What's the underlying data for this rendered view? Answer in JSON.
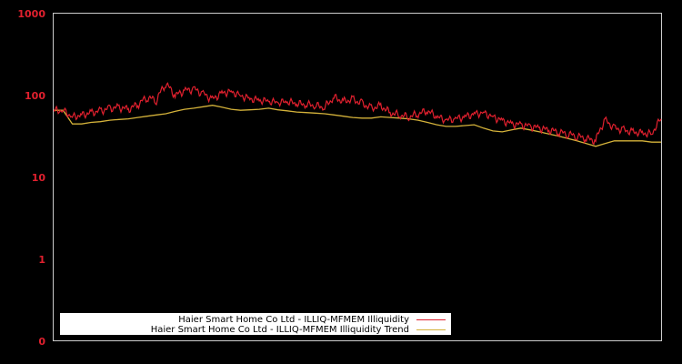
{
  "chart_data": {
    "type": "line",
    "title": "",
    "xlabel": "",
    "ylabel": "",
    "yscale": "log",
    "ylim": [
      0.1,
      1000
    ],
    "y_ticks": [
      "1000",
      "100",
      "10",
      "1",
      "0"
    ],
    "grid": false,
    "legend_position": "lower-left",
    "series": [
      {
        "name": "Haier Smart Home Co Ltd - ILLIQ-MFMEM Illiquidity",
        "color": "#e0202e",
        "values_approx": [
          66,
          66,
          55,
          58,
          62,
          65,
          70,
          72,
          68,
          78,
          95,
          88,
          140,
          100,
          115,
          120,
          105,
          90,
          108,
          112,
          100,
          92,
          88,
          85,
          82,
          84,
          80,
          78,
          76,
          72,
          95,
          85,
          90,
          80,
          70,
          75,
          62,
          58,
          55,
          60,
          65,
          55,
          50,
          52,
          55,
          60,
          62,
          55,
          50,
          45,
          44,
          42,
          40,
          38,
          36,
          34,
          32,
          30,
          28,
          50,
          40,
          38,
          36,
          35,
          34,
          52
        ]
      },
      {
        "name": "Haier Smart Home Co Ltd - ILLIQ-MFMEM Illiquidity Trend",
        "color": "#d4b23a",
        "values_approx": [
          66,
          66,
          45,
          45,
          47,
          48,
          50,
          51,
          52,
          54,
          56,
          58,
          60,
          64,
          68,
          70,
          73,
          76,
          72,
          68,
          66,
          67,
          68,
          70,
          67,
          65,
          63,
          62,
          61,
          60,
          58,
          56,
          54,
          53,
          53,
          55,
          54,
          53,
          52,
          50,
          47,
          44,
          42,
          42,
          43,
          44,
          40,
          37,
          36,
          38,
          40,
          38,
          36,
          34,
          32,
          30,
          28,
          26,
          24,
          26,
          28,
          28,
          28,
          28,
          27,
          27
        ]
      }
    ]
  },
  "axis": {
    "y_ticks": [
      {
        "label": "1000",
        "y": 15
      },
      {
        "label": "100",
        "y": 105
      },
      {
        "label": "10",
        "y": 195
      },
      {
        "label": "1",
        "y": 285
      },
      {
        "label": "0",
        "y": 375
      }
    ]
  },
  "legend": {
    "items": [
      {
        "label": "Haier Smart Home Co Ltd - ILLIQ-MFMEM Illiquidity",
        "color": "#e0202e"
      },
      {
        "label": "Haier Smart Home Co Ltd - ILLIQ-MFMEM Illiquidity Trend",
        "color": "#d4b23a"
      }
    ]
  }
}
